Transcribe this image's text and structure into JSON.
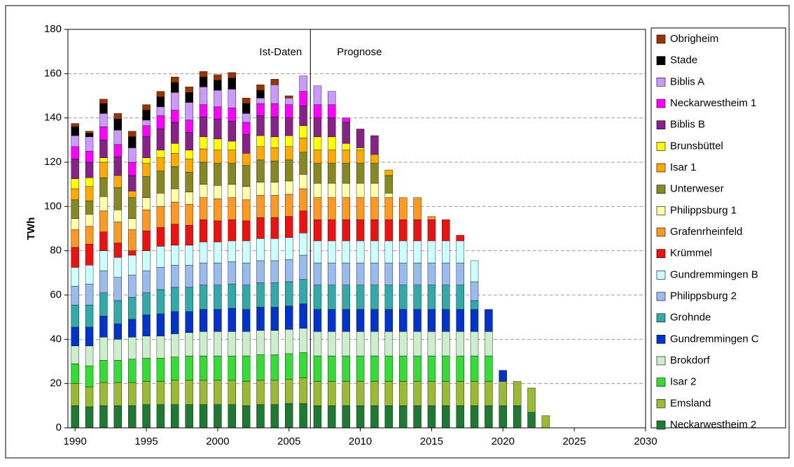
{
  "chart_data": {
    "type": "stacked_bar",
    "y_label": "TWh",
    "annotations": [
      "Ist-Daten",
      "Prognose"
    ],
    "reference_line_x": 2006.5,
    "x": [
      1990,
      1991,
      1992,
      1993,
      1994,
      1995,
      1996,
      1997,
      1998,
      1999,
      2000,
      2001,
      2002,
      2003,
      2004,
      2005,
      2006,
      2007,
      2008,
      2009,
      2010,
      2011,
      2012,
      2013,
      2014,
      2015,
      2016,
      2017,
      2018,
      2019,
      2020,
      2021,
      2022,
      2023
    ],
    "xlim": [
      1989.5,
      2030
    ],
    "xticks": [
      1990,
      1995,
      2000,
      2005,
      2010,
      2015,
      2020,
      2025,
      2030
    ],
    "ylim": [
      0,
      180
    ],
    "yticks": [
      0,
      20,
      40,
      60,
      80,
      100,
      120,
      140,
      160,
      180
    ],
    "grid": true,
    "legend": "right",
    "series": [
      {
        "name": "Neckarwestheim 2",
        "color": "#1e7a32",
        "values": [
          10,
          9.5,
          10,
          10,
          10,
          10.5,
          10.5,
          10.5,
          10.5,
          10.5,
          10.5,
          10.5,
          10,
          10.5,
          10.5,
          11,
          11,
          10,
          10,
          10,
          10,
          10,
          10,
          10,
          10,
          10,
          10,
          10,
          10,
          10,
          10,
          10,
          7,
          0
        ]
      },
      {
        "name": "Emsland",
        "color": "#99bb33",
        "values": [
          10,
          9,
          10.5,
          10.5,
          10.5,
          10.5,
          10.5,
          11,
          11,
          11,
          11,
          11,
          11,
          11,
          11,
          11,
          11.5,
          11,
          11,
          11,
          11,
          11,
          11,
          11,
          11,
          11,
          11,
          11,
          11,
          11,
          11,
          11,
          11,
          5.5
        ]
      },
      {
        "name": "Isar 2",
        "color": "#33dd33",
        "values": [
          9,
          9.5,
          10,
          10,
          10.5,
          10.5,
          10.5,
          10.5,
          11,
          11,
          11,
          11,
          11.5,
          11.5,
          11.5,
          11.5,
          11.5,
          11.5,
          11.5,
          11.5,
          11.5,
          11.5,
          11.5,
          11.5,
          11.5,
          11.5,
          11.5,
          11.5,
          11.5,
          11.5,
          0,
          0,
          0,
          0
        ]
      },
      {
        "name": "Brokdorf",
        "color": "#cceecc",
        "values": [
          8,
          9,
          10.5,
          9.5,
          10,
          10,
          10,
          10.5,
          10.5,
          11,
          11,
          11,
          11,
          11,
          11,
          11,
          11,
          11,
          11,
          11,
          11,
          11,
          11,
          11,
          11,
          11,
          11,
          11,
          11,
          11,
          0,
          0,
          0,
          0
        ]
      },
      {
        "name": "Gundremmingen C",
        "color": "#0033cc",
        "values": [
          8.5,
          8.5,
          9.5,
          7,
          8,
          9.5,
          10,
          10,
          9.5,
          10,
          10,
          10.5,
          10,
          10.5,
          10.5,
          10.5,
          11,
          10,
          10,
          10,
          10,
          10,
          10,
          10,
          10,
          10,
          10,
          10,
          10,
          10,
          5,
          0,
          0,
          0
        ]
      },
      {
        "name": "Grohnde",
        "color": "#33aaaa",
        "values": [
          10,
          10,
          10.5,
          10.5,
          10,
          10,
          11,
          11,
          11,
          11,
          11,
          11,
          11,
          11,
          11,
          11,
          11,
          11,
          11,
          11,
          11,
          11,
          11,
          11,
          11,
          11,
          11,
          11,
          4,
          0,
          0,
          0,
          0,
          0
        ]
      },
      {
        "name": "Philippsburg 2",
        "color": "#99bbee",
        "values": [
          8.5,
          9.5,
          10,
          10.5,
          10,
          10,
          10,
          10,
          10,
          10,
          10,
          10,
          10,
          10,
          10,
          10,
          11,
          10,
          10,
          10,
          10,
          10,
          10,
          10,
          10,
          10,
          10,
          10,
          8.5,
          0,
          0,
          0,
          0,
          0
        ]
      },
      {
        "name": "Gundremmingen B",
        "color": "#ccffff",
        "values": [
          8.5,
          8.5,
          9,
          9,
          9,
          9,
          9.5,
          9,
          9,
          9.5,
          9.5,
          9.5,
          10,
          10,
          10,
          10,
          10,
          10,
          10,
          10,
          10,
          10,
          10,
          10,
          10,
          10,
          10,
          10,
          9.5,
          0,
          0,
          0,
          0,
          0
        ]
      },
      {
        "name": "Krümmel",
        "color": "#ee1111",
        "values": [
          9,
          9.5,
          8.5,
          6.5,
          2,
          9,
          8.5,
          9.5,
          9,
          10,
          9.5,
          9.5,
          9,
          9.5,
          9.5,
          9.5,
          10,
          9.5,
          9.5,
          9.5,
          9.5,
          9.5,
          9.5,
          9.5,
          9.5,
          9.5,
          9.5,
          2.5,
          0,
          0,
          0,
          0,
          0,
          0
        ]
      },
      {
        "name": "Grafenrheinfeld",
        "color": "#ff9922",
        "values": [
          8,
          8,
          9.5,
          9.5,
          9.5,
          9.5,
          9.5,
          10,
          9.5,
          10,
          10,
          10,
          9.5,
          10,
          10,
          10,
          10,
          10,
          10,
          10,
          10,
          10,
          10,
          10,
          10,
          1.5,
          0,
          0,
          0,
          0,
          0,
          0,
          0,
          0
        ]
      },
      {
        "name": "Philippsburg 1",
        "color": "#ffffaa",
        "values": [
          5,
          5.5,
          6.5,
          5.5,
          5,
          5.5,
          6,
          6,
          5.5,
          6,
          6,
          6,
          6,
          6,
          6,
          6,
          6.5,
          6.5,
          6.5,
          6.5,
          6.5,
          6.5,
          2,
          0,
          0,
          0,
          0,
          0,
          0,
          0,
          0,
          0,
          0,
          0
        ]
      },
      {
        "name": "Unterweser",
        "color": "#888822",
        "values": [
          8.5,
          6,
          8.5,
          10,
          9.5,
          9.5,
          10,
          10,
          9,
          10,
          10,
          9.5,
          9.5,
          10,
          9.5,
          9.5,
          10,
          9,
          9,
          9,
          9,
          9,
          8,
          0,
          0,
          0,
          0,
          0,
          0,
          0,
          0,
          0,
          0,
          0
        ]
      },
      {
        "name": "Isar 1",
        "color": "#ffaa00",
        "values": [
          5,
          6.5,
          7,
          5.5,
          3,
          6,
          6,
          6,
          6,
          6,
          6,
          6,
          5.5,
          6,
          6,
          6,
          6.5,
          6,
          6,
          6,
          6,
          4,
          2.5,
          0,
          0,
          0,
          0,
          0,
          0,
          0,
          0,
          0,
          0,
          0
        ]
      },
      {
        "name": "Brunsbüttel",
        "color": "#ffff00",
        "values": [
          4.5,
          4,
          2,
          0,
          0,
          2.5,
          3.5,
          4.5,
          4,
          5.5,
          5,
          4,
          0,
          5,
          5,
          5,
          5.5,
          6,
          6,
          3,
          1,
          0,
          0,
          0,
          0,
          0,
          0,
          0,
          0,
          0,
          0,
          0,
          0,
          0
        ]
      },
      {
        "name": "Biblis B",
        "color": "#882288",
        "values": [
          9,
          7,
          8,
          8.5,
          7,
          9.5,
          9.5,
          9.5,
          8,
          9,
          9,
          9,
          8.5,
          9,
          9,
          8,
          9,
          8.5,
          8.5,
          9.5,
          8.5,
          8.5,
          0,
          0,
          0,
          0,
          0,
          0,
          0,
          0,
          0,
          0,
          0,
          0
        ]
      },
      {
        "name": "Neckarwestheim 1",
        "color": "#ff00ff",
        "values": [
          5.5,
          5,
          6,
          5.5,
          6,
          5,
          6,
          5.5,
          5.5,
          5.5,
          5.5,
          6,
          5.5,
          5.5,
          6,
          6,
          6.5,
          6,
          6,
          2,
          0,
          0,
          0,
          0,
          0,
          0,
          0,
          0,
          0,
          0,
          0,
          0,
          0,
          0
        ]
      },
      {
        "name": "Biblis A",
        "color": "#cc99ff",
        "values": [
          5,
          6.5,
          6,
          6.5,
          6.5,
          2.5,
          4,
          8,
          8,
          8,
          7.5,
          8.5,
          4,
          2.5,
          8.5,
          3,
          7,
          8.5,
          6,
          0,
          0,
          0,
          0,
          0,
          0,
          0,
          0,
          0,
          0,
          0,
          0,
          0,
          0,
          0
        ]
      },
      {
        "name": "Stade",
        "color": "#000000",
        "values": [
          4,
          1.5,
          4.5,
          5,
          5,
          4.5,
          4.5,
          4.5,
          4.5,
          4.5,
          4.5,
          5,
          4.5,
          3.5,
          0,
          0,
          0,
          0,
          0,
          0,
          0,
          0,
          0,
          0,
          0,
          0,
          0,
          0,
          0,
          0,
          0,
          0,
          0,
          0
        ]
      },
      {
        "name": "Obrigheim",
        "color": "#993300",
        "values": [
          1.5,
          1,
          2,
          2.5,
          2.5,
          2.5,
          2.5,
          2.5,
          2.5,
          2.5,
          2.5,
          2.5,
          2.5,
          2.5,
          2.5,
          1,
          0,
          0,
          0,
          0,
          0,
          0,
          0,
          0,
          0,
          0,
          0,
          0,
          0,
          0,
          0,
          0,
          0,
          0
        ]
      }
    ]
  }
}
